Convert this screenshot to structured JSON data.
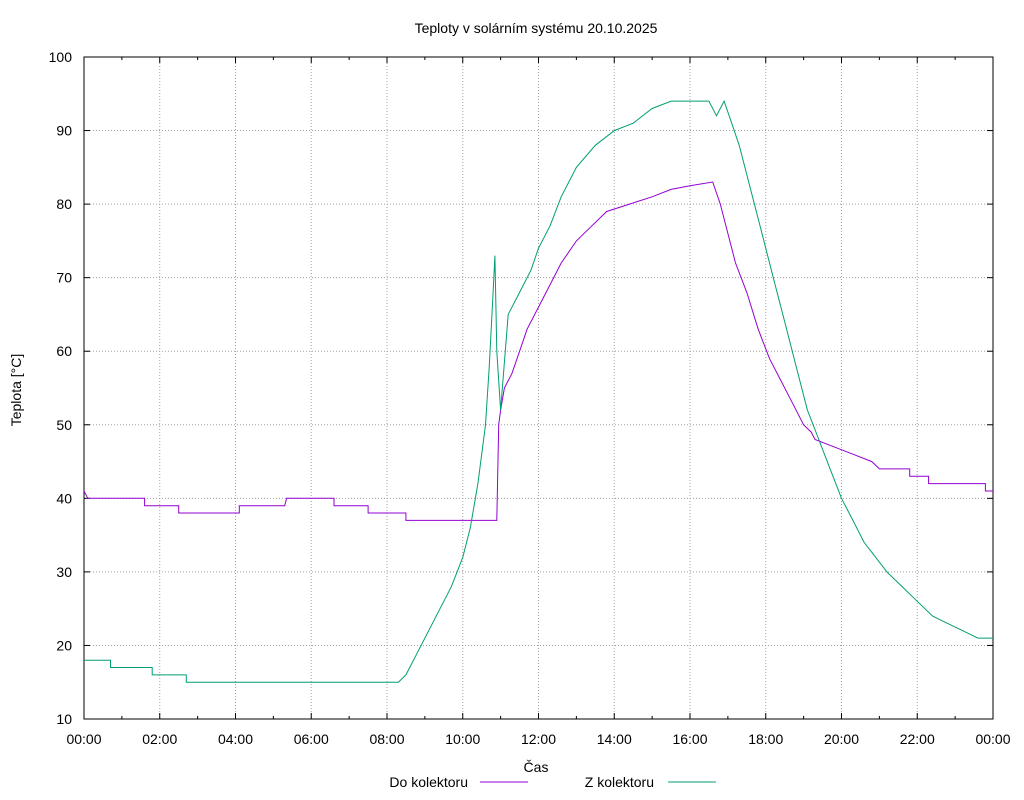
{
  "chart_data": {
    "type": "line",
    "title": "Teploty v solárním systému 20.10.2025",
    "xlabel": "Čas",
    "ylabel": "Teplota [°C]",
    "x_unit": "hours",
    "xlim": [
      0,
      24
    ],
    "ylim": [
      10,
      100
    ],
    "grid": true,
    "legend_position": "bottom-center",
    "x_ticks": [
      {
        "value": 0,
        "label": "00:00"
      },
      {
        "value": 2,
        "label": "02:00"
      },
      {
        "value": 4,
        "label": "04:00"
      },
      {
        "value": 6,
        "label": "06:00"
      },
      {
        "value": 8,
        "label": "08:00"
      },
      {
        "value": 10,
        "label": "10:00"
      },
      {
        "value": 12,
        "label": "12:00"
      },
      {
        "value": 14,
        "label": "14:00"
      },
      {
        "value": 16,
        "label": "16:00"
      },
      {
        "value": 18,
        "label": "18:00"
      },
      {
        "value": 20,
        "label": "20:00"
      },
      {
        "value": 22,
        "label": "22:00"
      },
      {
        "value": 24,
        "label": "00:00"
      }
    ],
    "y_ticks": [
      {
        "value": 10,
        "label": "10"
      },
      {
        "value": 20,
        "label": "20"
      },
      {
        "value": 30,
        "label": "30"
      },
      {
        "value": 40,
        "label": "40"
      },
      {
        "value": 50,
        "label": "50"
      },
      {
        "value": 60,
        "label": "60"
      },
      {
        "value": 70,
        "label": "70"
      },
      {
        "value": 80,
        "label": "80"
      },
      {
        "value": 90,
        "label": "90"
      },
      {
        "value": 100,
        "label": "100"
      }
    ],
    "series": [
      {
        "name": "Do kolektoru",
        "color": "#9400d3",
        "points": [
          [
            0,
            41
          ],
          [
            0.1,
            40
          ],
          [
            1.6,
            40
          ],
          [
            1.6,
            39
          ],
          [
            2.5,
            39
          ],
          [
            2.5,
            38
          ],
          [
            4.1,
            38
          ],
          [
            4.1,
            39
          ],
          [
            5.3,
            39
          ],
          [
            5.35,
            40
          ],
          [
            6.6,
            40
          ],
          [
            6.6,
            39
          ],
          [
            7.5,
            39
          ],
          [
            7.5,
            38
          ],
          [
            8.5,
            38
          ],
          [
            8.5,
            37
          ],
          [
            10.9,
            37
          ],
          [
            10.95,
            50
          ],
          [
            11.0,
            52
          ],
          [
            11.1,
            55
          ],
          [
            11.3,
            57
          ],
          [
            11.5,
            60
          ],
          [
            11.7,
            63
          ],
          [
            12.0,
            66
          ],
          [
            12.3,
            69
          ],
          [
            12.6,
            72
          ],
          [
            13.0,
            75
          ],
          [
            13.4,
            77
          ],
          [
            13.8,
            79
          ],
          [
            14.4,
            80
          ],
          [
            15.0,
            81
          ],
          [
            15.5,
            82
          ],
          [
            16.0,
            82.5
          ],
          [
            16.6,
            83
          ],
          [
            16.8,
            80
          ],
          [
            17.0,
            76
          ],
          [
            17.2,
            72
          ],
          [
            17.5,
            68
          ],
          [
            17.8,
            63
          ],
          [
            18.1,
            59
          ],
          [
            18.4,
            56
          ],
          [
            18.7,
            53
          ],
          [
            19.0,
            50
          ],
          [
            19.2,
            49
          ],
          [
            19.3,
            48
          ],
          [
            19.8,
            47
          ],
          [
            20.3,
            46
          ],
          [
            20.8,
            45
          ],
          [
            21.0,
            44
          ],
          [
            21.8,
            44
          ],
          [
            21.8,
            43
          ],
          [
            22.3,
            43
          ],
          [
            22.3,
            42
          ],
          [
            23.8,
            42
          ],
          [
            23.8,
            41
          ],
          [
            24,
            41
          ]
        ]
      },
      {
        "name": "Z kolektoru",
        "color": "#009e73",
        "points": [
          [
            0,
            18
          ],
          [
            0.7,
            18
          ],
          [
            0.7,
            17
          ],
          [
            1.8,
            17
          ],
          [
            1.8,
            16
          ],
          [
            2.7,
            16
          ],
          [
            2.7,
            15
          ],
          [
            8.3,
            15
          ],
          [
            8.5,
            16
          ],
          [
            8.8,
            19
          ],
          [
            9.1,
            22
          ],
          [
            9.4,
            25
          ],
          [
            9.7,
            28
          ],
          [
            10.0,
            32
          ],
          [
            10.2,
            36
          ],
          [
            10.4,
            42
          ],
          [
            10.6,
            50
          ],
          [
            10.7,
            58
          ],
          [
            10.8,
            68
          ],
          [
            10.85,
            73
          ],
          [
            10.9,
            60
          ],
          [
            11.0,
            52
          ],
          [
            11.2,
            65
          ],
          [
            11.5,
            68
          ],
          [
            11.8,
            71
          ],
          [
            12.0,
            74
          ],
          [
            12.3,
            77
          ],
          [
            12.6,
            81
          ],
          [
            13.0,
            85
          ],
          [
            13.5,
            88
          ],
          [
            14.0,
            90
          ],
          [
            14.5,
            91
          ],
          [
            15.0,
            93
          ],
          [
            15.5,
            94
          ],
          [
            16.0,
            94
          ],
          [
            16.5,
            94
          ],
          [
            16.7,
            92
          ],
          [
            16.9,
            94
          ],
          [
            17.1,
            91
          ],
          [
            17.3,
            88
          ],
          [
            17.6,
            82
          ],
          [
            17.9,
            76
          ],
          [
            18.2,
            70
          ],
          [
            18.5,
            64
          ],
          [
            18.8,
            58
          ],
          [
            19.1,
            52
          ],
          [
            19.4,
            48
          ],
          [
            19.7,
            44
          ],
          [
            20.0,
            40
          ],
          [
            20.3,
            37
          ],
          [
            20.6,
            34
          ],
          [
            20.9,
            32
          ],
          [
            21.2,
            30
          ],
          [
            21.6,
            28
          ],
          [
            22.0,
            26
          ],
          [
            22.4,
            24
          ],
          [
            22.8,
            23
          ],
          [
            23.2,
            22
          ],
          [
            23.6,
            21
          ],
          [
            24,
            21
          ]
        ]
      }
    ]
  }
}
